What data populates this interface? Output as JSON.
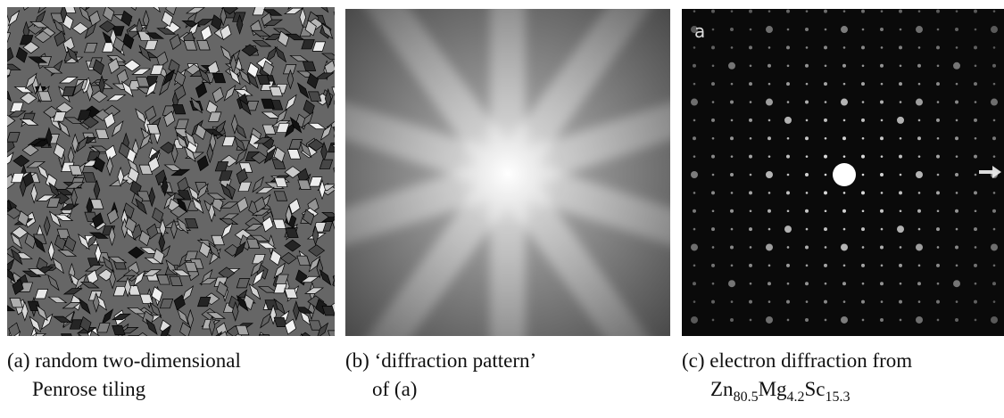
{
  "panels": [
    {
      "caption": [
        "(a) random two-dimensional",
        "Penrose tiling"
      ]
    },
    {
      "caption": [
        "(b) ‘diffraction pattern’",
        "of (a)"
      ]
    },
    {
      "label": "a",
      "caption": [
        "(c) electron diffraction from"
      ],
      "formula": [
        {
          "element": "Zn",
          "sub": "80.5"
        },
        {
          "element": "Mg",
          "sub": "4.2"
        },
        {
          "element": "Sc",
          "sub": "15.3"
        }
      ]
    }
  ]
}
